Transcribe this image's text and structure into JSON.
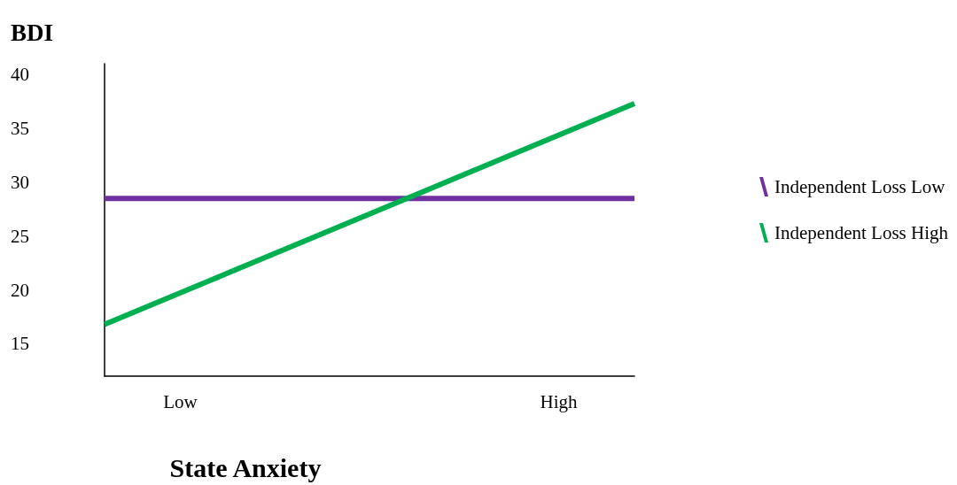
{
  "chart_data": {
    "type": "line",
    "xlabel": "State Anxiety",
    "ylabel": "BDI",
    "categories": [
      null,
      "Low",
      null,
      null,
      null,
      null,
      "High",
      null
    ],
    "ylim": [
      12,
      41
    ],
    "yticks": [
      15,
      20,
      25,
      30,
      35,
      40
    ],
    "series": [
      {
        "name": "Independent Loss Low",
        "color": "#7030a0",
        "values": [
          28.5,
          null,
          null,
          null,
          null,
          null,
          null,
          28.5
        ]
      },
      {
        "name": "Independent Loss High",
        "color": "#00b050",
        "values": [
          16.8,
          null,
          null,
          null,
          null,
          null,
          null,
          37.3
        ]
      }
    ],
    "grid": false,
    "legend": "right",
    "marker": "none",
    "line_style": "solid"
  }
}
